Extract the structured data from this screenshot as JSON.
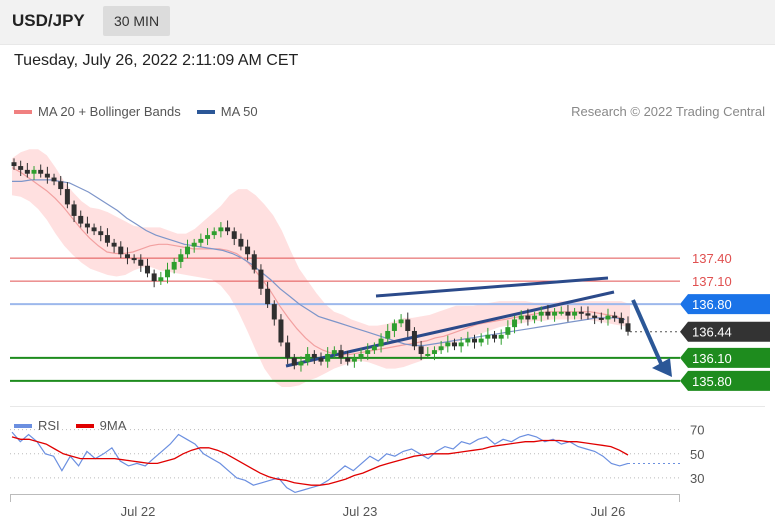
{
  "header": {
    "symbol": "USD/JPY",
    "timeframe": "30 MIN"
  },
  "datetime": "Tuesday, July 26, 2022 2:11:09 AM CET",
  "legend": {
    "ma20": {
      "label": "MA 20 + Bollinger Bands",
      "color": "#f08080"
    },
    "ma50": {
      "label": "MA 50",
      "color": "#2b5797"
    }
  },
  "credit": "Research © 2022 Trading Central",
  "rsi_legend": {
    "rsi": {
      "label": "RSI",
      "color": "#6b8fe0"
    },
    "ma9": {
      "label": "9MA",
      "color": "#e00000"
    }
  },
  "colors": {
    "resistance": "#e05050",
    "pivot": "#1a73e8",
    "support": "#1e8c1e",
    "last": "#333333",
    "band": "#ffd6d6",
    "trend": "#2b4a8a",
    "arrow": "#2b5797"
  },
  "chart_data": [
    {
      "type": "candlestick",
      "title": "",
      "xlabel": "",
      "ylabel": "",
      "ylim": [
        135.55,
        139.07
      ],
      "x_ticks": [
        "Jul 22",
        "Jul 23",
        "Jul 26"
      ],
      "levels": [
        {
          "label": "137.40",
          "value": 137.4,
          "kind": "resistance"
        },
        {
          "label": "137.10",
          "value": 137.1,
          "kind": "resistance"
        },
        {
          "label": "136.80",
          "value": 136.8,
          "kind": "pivot"
        },
        {
          "label": "136.44",
          "value": 136.44,
          "kind": "last"
        },
        {
          "label": "136.10",
          "value": 136.1,
          "kind": "support"
        },
        {
          "label": "135.80",
          "value": 135.8,
          "kind": "support"
        }
      ],
      "close": [
        138.6,
        138.55,
        138.5,
        138.55,
        138.5,
        138.45,
        138.4,
        138.3,
        138.1,
        137.95,
        137.85,
        137.8,
        137.75,
        137.7,
        137.6,
        137.55,
        137.45,
        137.4,
        137.38,
        137.3,
        137.2,
        137.1,
        137.15,
        137.25,
        137.35,
        137.45,
        137.55,
        137.6,
        137.65,
        137.7,
        137.75,
        137.8,
        137.75,
        137.65,
        137.55,
        137.45,
        137.25,
        137.0,
        136.8,
        136.6,
        136.3,
        136.1,
        136.0,
        136.05,
        136.15,
        136.1,
        136.05,
        136.15,
        136.2,
        136.1,
        136.05,
        136.1,
        136.15,
        136.2,
        136.25,
        136.35,
        136.45,
        136.55,
        136.6,
        136.45,
        136.25,
        136.15,
        136.15,
        136.2,
        136.25,
        136.3,
        136.25,
        136.3,
        136.35,
        136.3,
        136.35,
        136.4,
        136.35,
        136.4,
        136.5,
        136.6,
        136.65,
        136.6,
        136.65,
        136.7,
        136.65,
        136.7,
        136.7,
        136.65,
        136.7,
        136.68,
        136.65,
        136.62,
        136.6,
        136.65,
        136.62,
        136.55,
        136.44
      ],
      "upper_band": [
        138.7,
        138.78,
        138.82,
        138.82,
        138.74,
        138.58,
        138.4,
        138.26,
        138.14,
        138.06,
        138.04,
        138.0,
        137.94,
        137.88,
        137.82,
        137.8,
        137.8,
        137.8,
        137.76,
        137.72,
        137.72,
        137.78,
        137.88,
        137.98,
        138.08,
        138.22,
        138.3,
        138.3,
        138.22,
        138.1,
        137.96,
        137.76,
        137.5,
        137.26,
        137.1,
        136.94,
        136.8,
        136.7,
        136.66,
        136.6,
        136.56,
        136.52,
        136.52,
        136.54,
        136.58,
        136.62,
        136.62,
        136.64,
        136.66,
        136.7,
        136.74,
        136.78,
        136.78,
        136.78,
        136.8,
        136.82,
        136.84,
        136.84,
        136.84,
        136.84,
        136.82,
        136.82,
        136.82,
        136.84,
        136.84,
        136.84,
        136.84,
        136.84,
        136.84,
        136.84,
        136.84,
        136.8
      ],
      "lower_band": [
        138.22,
        138.2,
        138.14,
        138.04,
        137.9,
        137.72,
        137.56,
        137.44,
        137.34,
        137.26,
        137.22,
        137.18,
        137.16,
        137.18,
        137.24,
        137.28,
        137.28,
        137.24,
        137.22,
        137.2,
        137.18,
        137.16,
        137.14,
        137.12,
        137.04,
        136.9,
        136.7,
        136.46,
        136.2,
        135.96,
        135.8,
        135.72,
        135.72,
        135.74,
        135.8,
        135.84,
        135.9,
        135.96,
        136.0,
        136.04,
        136.06,
        136.04,
        136.0,
        135.96,
        135.96,
        135.98,
        136.02,
        136.06,
        136.12,
        136.18,
        136.24,
        136.3,
        136.34,
        136.38,
        136.42,
        136.46,
        136.5,
        136.52,
        136.54,
        136.56,
        136.58,
        136.58,
        136.6,
        136.6,
        136.6,
        136.6,
        136.6,
        136.58,
        136.56,
        136.54,
        136.52,
        136.5
      ],
      "ma20": [
        138.58,
        138.52,
        138.44,
        138.36,
        138.28,
        138.18,
        138.06,
        137.92,
        137.78,
        137.66,
        137.56,
        137.48,
        137.46,
        137.46,
        137.48,
        137.52,
        137.56,
        137.58,
        137.58,
        137.56,
        137.54,
        137.52,
        137.52,
        137.52,
        137.52,
        137.5,
        137.46,
        137.38,
        137.26,
        137.12,
        136.96,
        136.78,
        136.62,
        136.48,
        136.36,
        136.26,
        136.2,
        136.16,
        136.14,
        136.14,
        136.16,
        136.18,
        136.2,
        136.22,
        136.24,
        136.26,
        136.28,
        136.3,
        136.32,
        136.36,
        136.38,
        136.42,
        136.46,
        136.5,
        136.54,
        136.56,
        136.58,
        136.6,
        136.62,
        136.64,
        136.66,
        136.68,
        136.7,
        136.7,
        136.7,
        136.7,
        136.7,
        136.7,
        136.68,
        136.66,
        136.64,
        136.6
      ],
      "ma50": [
        138.4,
        138.4,
        138.42,
        138.42,
        138.42,
        138.4,
        138.38,
        138.32,
        138.26,
        138.18,
        138.1,
        138.02,
        137.92,
        137.84,
        137.76,
        137.7,
        137.66,
        137.62,
        137.58,
        137.56,
        137.54,
        137.52,
        137.5,
        137.46,
        137.4,
        137.32,
        137.22,
        137.12,
        137.0,
        136.9,
        136.8,
        136.72,
        136.64,
        136.6,
        136.56,
        136.52,
        136.48,
        136.44,
        136.4,
        136.36,
        136.32,
        136.28,
        136.26,
        136.26,
        136.28,
        136.3,
        136.32,
        136.34,
        136.36,
        136.38,
        136.4,
        136.42,
        136.44,
        136.46,
        136.48,
        136.5,
        136.52,
        136.54,
        136.56,
        136.58,
        136.6,
        136.62,
        136.62,
        136.62,
        136.6
      ]
    },
    {
      "type": "line",
      "title": "",
      "ylim": [
        20,
        78
      ],
      "y_ticks": [
        30,
        50,
        70
      ],
      "series": [
        {
          "name": "RSI",
          "values": [
            68,
            60,
            66,
            60,
            50,
            48,
            36,
            48,
            40,
            52,
            46,
            50,
            55,
            44,
            40,
            42,
            40,
            46,
            52,
            58,
            66,
            62,
            58,
            50,
            46,
            42,
            36,
            30,
            28,
            24,
            26,
            28,
            30,
            22,
            18,
            20,
            22,
            24,
            28,
            34,
            40,
            36,
            42,
            48,
            44,
            50,
            48,
            52,
            54,
            50,
            46,
            52,
            56,
            54,
            60,
            58,
            62,
            64,
            58,
            62,
            60,
            64,
            66,
            64,
            60,
            62,
            58,
            60,
            56,
            54,
            52,
            48,
            42,
            40,
            42
          ]
        },
        {
          "name": "9MA",
          "values": [
            64,
            62,
            62,
            60,
            58,
            54,
            50,
            48,
            46,
            46,
            46,
            46,
            46,
            45,
            44,
            43,
            42,
            42,
            44,
            46,
            50,
            53,
            55,
            55,
            53,
            50,
            46,
            42,
            38,
            34,
            31,
            29,
            28,
            26,
            25,
            24,
            24,
            25,
            27,
            29,
            32,
            34,
            37,
            40,
            42,
            44,
            46,
            48,
            49,
            50,
            50,
            50,
            51,
            52,
            53,
            54,
            56,
            57,
            58,
            59,
            60,
            60,
            61,
            61,
            61,
            60,
            60,
            59,
            58,
            57,
            56,
            53,
            49
          ]
        }
      ]
    }
  ]
}
